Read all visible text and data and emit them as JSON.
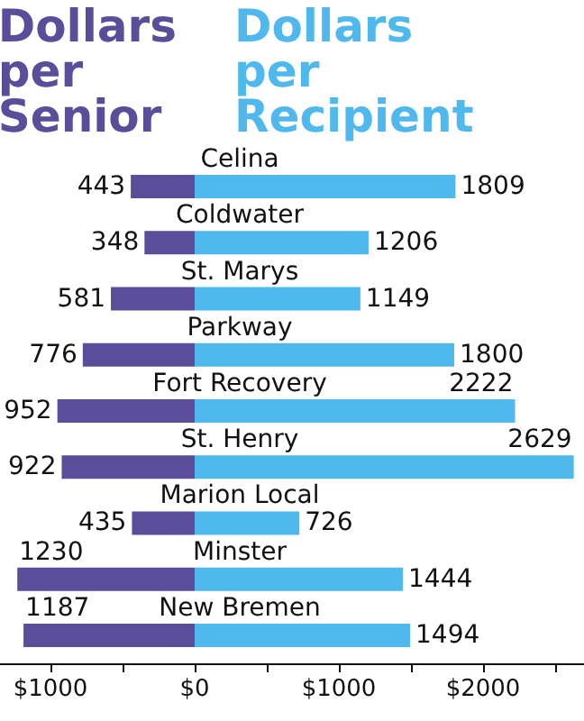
{
  "chart_data": {
    "type": "bar",
    "orientation": "horizontal",
    "legend": false,
    "grid": false,
    "categories": [
      "Celina",
      "Coldwater",
      "St. Marys",
      "Parkway",
      "Fort Recovery",
      "St. Henry",
      "Marion Local",
      "Minster",
      "New Bremen"
    ],
    "series": [
      {
        "name": "Dollars per Senior",
        "color": "#5a4e9a",
        "values": [
          443,
          348,
          581,
          776,
          952,
          922,
          435,
          1230,
          1187
        ],
        "base": [
          -443,
          -348,
          -581,
          -776,
          -952,
          -922,
          -435,
          -1230,
          -1187
        ]
      },
      {
        "name": "Dollars per Recipient",
        "color": "#4fb8ec",
        "values": [
          1809,
          1206,
          1149,
          1800,
          2222,
          2629,
          726,
          1444,
          1494
        ]
      }
    ],
    "data_labels": true,
    "xlim": [
      -1350,
      2700
    ],
    "xticks": [
      {
        "value": -1000,
        "label": "$1000"
      },
      {
        "value": -500,
        "label": null
      },
      {
        "value": 0,
        "label": "$0"
      },
      {
        "value": 500,
        "label": null
      },
      {
        "value": 1000,
        "label": "$1000"
      },
      {
        "value": 1500,
        "label": null
      },
      {
        "value": 2000,
        "label": "$2000"
      },
      {
        "value": 2500,
        "label": null
      }
    ]
  }
}
